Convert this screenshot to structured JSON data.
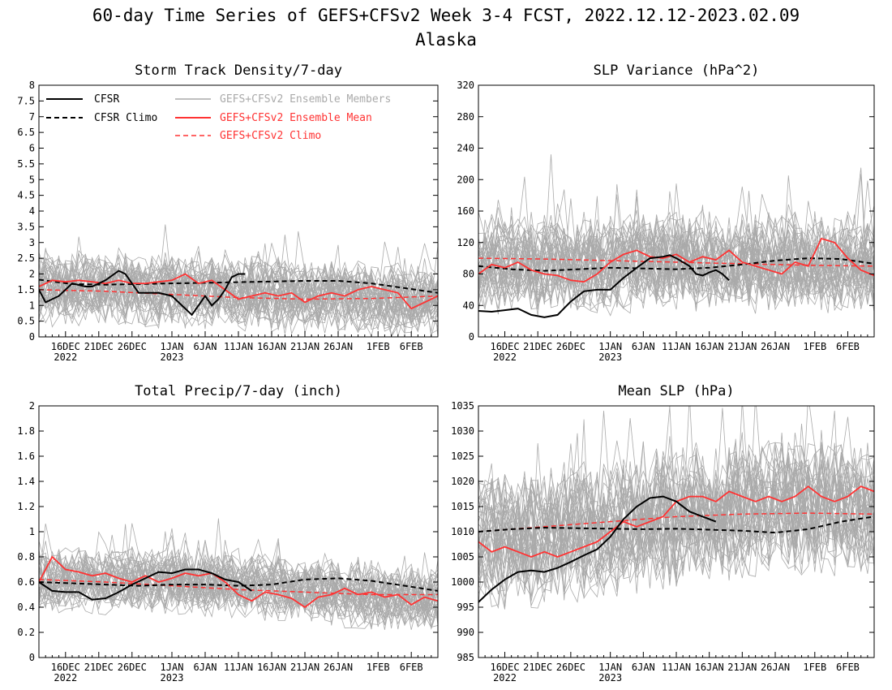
{
  "title": "60-day Time Series of GEFS+CFSv2 Week 3-4 FCST, 2022.12.12-2023.02.09",
  "subtitle": "Alaska",
  "colors": {
    "ensemble_member": "#aaaaaa",
    "ensemble_mean": "#ff3333",
    "cfsr": "#000000",
    "cfsr_climo": "#000000",
    "gefs_climo": "#ff3333"
  },
  "x_tick_labels": [
    "16DEC",
    "21DEC",
    "26DEC",
    "1JAN",
    "6JAN",
    "11JAN",
    "16JAN",
    "21JAN",
    "26JAN",
    "1FEB",
    "6FEB"
  ],
  "x_tick_sublabels": [
    "2022",
    "",
    "",
    "2023",
    "",
    "",
    "",
    "",
    "",
    "",
    ""
  ],
  "legend": [
    "CFSR",
    "CFSR Climo",
    "GEFS+CFSv2 Ensemble Members",
    "GEFS+CFSv2 Ensemble Mean",
    "GEFS+CFSv2 Climo"
  ],
  "chart_data": [
    {
      "type": "line",
      "title": "Storm Track Density/7-day",
      "ylim": [
        0,
        8
      ],
      "yticks": [
        "0",
        "0.5",
        "1",
        "1.5",
        "2",
        "2.5",
        "3",
        "3.5",
        "4",
        "4.5",
        "5",
        "5.5",
        "6",
        "6.5",
        "7",
        "7.5",
        "8"
      ],
      "legend_placement": "top",
      "ensemble_members": {
        "count": 40,
        "center": [
          1.55,
          1.5,
          1.45,
          1.3,
          1.2,
          1.1
        ],
        "spread_low": 0.2,
        "spread_high": 3.3
      },
      "series": [
        {
          "name": "CFSR",
          "x": [
            0,
            1,
            3,
            5,
            7,
            8,
            10,
            12,
            13,
            15,
            17,
            18,
            20,
            22,
            23,
            25,
            26,
            27,
            28,
            29,
            30,
            31,
            32,
            33,
            34,
            35,
            36,
            37,
            38,
            39,
            40,
            41,
            42,
            43,
            44,
            45,
            46,
            47,
            48,
            49,
            50,
            51,
            52,
            53,
            54,
            55,
            56,
            57,
            58,
            59,
            60
          ],
          "values": [
            1.5,
            1.1,
            1.3,
            1.7,
            1.6,
            1.6,
            1.8,
            2.1,
            2.0,
            1.4,
            1.4,
            1.4,
            1.3,
            0.9,
            0.7,
            1.3,
            1.0,
            1.2,
            1.5,
            1.9,
            2.0,
            2.0,
            null,
            null,
            null,
            null,
            null,
            null,
            null,
            null,
            null,
            null,
            null,
            null,
            null,
            null,
            null,
            null,
            null,
            null,
            null,
            null,
            null,
            null,
            null,
            null,
            null,
            null,
            null,
            null,
            null
          ]
        },
        {
          "name": "CFSR Climo",
          "x": [
            0,
            5,
            10,
            15,
            20,
            25,
            30,
            35,
            40,
            45,
            50,
            55,
            60
          ],
          "values": [
            1.82,
            1.68,
            1.66,
            1.68,
            1.7,
            1.72,
            1.74,
            1.76,
            1.78,
            1.78,
            1.7,
            1.55,
            1.4
          ]
        },
        {
          "name": "GEFS+CFSv2 Ensemble Mean",
          "x": [
            0,
            2,
            4,
            6,
            8,
            10,
            12,
            14,
            16,
            18,
            20,
            22,
            24,
            26,
            28,
            30,
            32,
            34,
            36,
            38,
            40,
            42,
            44,
            46,
            48,
            50,
            52,
            54,
            56,
            58,
            60
          ],
          "values": [
            1.6,
            1.8,
            1.75,
            1.8,
            1.75,
            1.7,
            1.8,
            1.7,
            1.7,
            1.75,
            1.8,
            2.0,
            1.7,
            1.8,
            1.5,
            1.2,
            1.3,
            1.4,
            1.3,
            1.4,
            1.1,
            1.3,
            1.4,
            1.3,
            1.5,
            1.6,
            1.5,
            1.4,
            0.9,
            1.1,
            1.3
          ]
        },
        {
          "name": "GEFS+CFSv2 Climo",
          "x": [
            0,
            10,
            20,
            30,
            40,
            50,
            60
          ],
          "values": [
            1.5,
            1.45,
            1.35,
            1.25,
            1.2,
            1.22,
            1.3
          ]
        }
      ]
    },
    {
      "type": "line",
      "title": "SLP Variance (hPa^2)",
      "ylim": [
        0,
        320
      ],
      "yticks": [
        "0",
        "40",
        "80",
        "120",
        "160",
        "200",
        "240",
        "280",
        "320"
      ],
      "ensemble_members": {
        "count": 40,
        "center": [
          90,
          92,
          95,
          95,
          92,
          90
        ],
        "spread_low": 30,
        "spread_high": 200
      },
      "series": [
        {
          "name": "CFSR",
          "x": [
            0,
            2,
            4,
            6,
            8,
            10,
            12,
            14,
            16,
            18,
            20,
            22,
            24,
            26,
            28,
            29,
            30,
            32,
            33,
            34,
            35,
            36,
            37,
            38,
            39,
            40,
            41
          ],
          "values": [
            33,
            32,
            34,
            36,
            28,
            25,
            28,
            45,
            58,
            60,
            60,
            75,
            88,
            100,
            102,
            104,
            100,
            90,
            80,
            78,
            82,
            85,
            80,
            72,
            null,
            null,
            null
          ]
        },
        {
          "name": "CFSR Climo",
          "x": [
            0,
            5,
            10,
            15,
            20,
            25,
            30,
            35,
            40,
            45,
            50,
            55,
            60
          ],
          "values": [
            90,
            86,
            84,
            86,
            88,
            87,
            86,
            88,
            92,
            97,
            100,
            99,
            93
          ]
        },
        {
          "name": "GEFS+CFSv2 Ensemble Mean",
          "x": [
            0,
            2,
            4,
            6,
            8,
            10,
            12,
            14,
            16,
            18,
            20,
            22,
            24,
            26,
            28,
            30,
            32,
            34,
            36,
            38,
            40,
            42,
            44,
            46,
            48,
            50,
            52,
            54,
            56,
            58,
            60
          ],
          "values": [
            80,
            92,
            88,
            95,
            85,
            80,
            78,
            72,
            70,
            80,
            95,
            105,
            110,
            102,
            100,
            105,
            95,
            102,
            98,
            110,
            95,
            90,
            85,
            80,
            95,
            90,
            125,
            120,
            100,
            85,
            78
          ]
        },
        {
          "name": "GEFS+CFSv2 Climo",
          "x": [
            0,
            10,
            20,
            30,
            40,
            50,
            60
          ],
          "values": [
            100,
            99,
            97,
            95,
            93,
            91,
            90
          ]
        }
      ]
    },
    {
      "type": "line",
      "title": "Total Precip/7-day (inch)",
      "ylim": [
        0,
        2
      ],
      "yticks": [
        "0",
        "0.2",
        "0.4",
        "0.6",
        "0.8",
        "1",
        "1.2",
        "1.4",
        "1.6",
        "1.8",
        "2"
      ],
      "ensemble_members": {
        "count": 40,
        "center": [
          0.6,
          0.62,
          0.6,
          0.55,
          0.5,
          0.45
        ],
        "spread_low": 0.25,
        "spread_high": 0.95
      },
      "series": [
        {
          "name": "CFSR",
          "x": [
            0,
            2,
            4,
            6,
            8,
            10,
            12,
            14,
            16,
            18,
            20,
            22,
            24,
            26,
            28,
            30,
            32
          ],
          "values": [
            0.6,
            0.53,
            0.52,
            0.52,
            0.46,
            0.47,
            0.52,
            0.58,
            0.63,
            0.68,
            0.67,
            0.7,
            0.7,
            0.67,
            0.62,
            0.6,
            0.53
          ]
        },
        {
          "name": "CFSR Climo",
          "x": [
            0,
            5,
            10,
            15,
            20,
            25,
            30,
            35,
            40,
            45,
            50,
            55,
            60
          ],
          "values": [
            0.6,
            0.59,
            0.58,
            0.57,
            0.58,
            0.58,
            0.57,
            0.58,
            0.62,
            0.63,
            0.61,
            0.57,
            0.53
          ]
        },
        {
          "name": "GEFS+CFSv2 Ensemble Mean",
          "x": [
            0,
            2,
            4,
            6,
            8,
            10,
            12,
            14,
            16,
            18,
            20,
            22,
            24,
            26,
            28,
            30,
            32,
            34,
            36,
            38,
            40,
            42,
            44,
            46,
            48,
            50,
            52,
            54,
            56,
            58,
            60
          ],
          "values": [
            0.6,
            0.8,
            0.7,
            0.68,
            0.65,
            0.67,
            0.63,
            0.6,
            0.65,
            0.6,
            0.63,
            0.67,
            0.65,
            0.67,
            0.6,
            0.5,
            0.45,
            0.52,
            0.5,
            0.47,
            0.4,
            0.48,
            0.5,
            0.55,
            0.5,
            0.52,
            0.48,
            0.5,
            0.42,
            0.48,
            0.45
          ]
        },
        {
          "name": "GEFS+CFSv2 Climo",
          "x": [
            0,
            10,
            20,
            30,
            40,
            50,
            60
          ],
          "values": [
            0.62,
            0.6,
            0.57,
            0.54,
            0.52,
            0.5,
            0.5
          ]
        }
      ]
    },
    {
      "type": "line",
      "title": "Mean SLP (hPa)",
      "ylim": [
        985,
        1035
      ],
      "yticks": [
        "985",
        "990",
        "995",
        "1000",
        "1005",
        "1010",
        "1015",
        "1020",
        "1025",
        "1030",
        "1035"
      ],
      "ensemble_members": {
        "count": 40,
        "center": [
          1008,
          1009,
          1012,
          1014,
          1015,
          1015
        ],
        "spread_low": 992,
        "spread_high": 1028
      },
      "series": [
        {
          "name": "CFSR",
          "x": [
            0,
            2,
            4,
            6,
            8,
            10,
            12,
            14,
            16,
            18,
            20,
            22,
            24,
            26,
            28,
            30,
            32,
            34,
            36
          ],
          "values": [
            996,
            998.5,
            1000.5,
            1002,
            1002.3,
            1002,
            1002.8,
            1004,
            1005.3,
            1006.5,
            1009,
            1012.5,
            1015,
            1016.7,
            1017,
            1016,
            1014,
            1013,
            1012
          ]
        },
        {
          "name": "CFSR Climo",
          "x": [
            0,
            5,
            10,
            15,
            20,
            25,
            30,
            35,
            40,
            45,
            50,
            55,
            60
          ],
          "values": [
            1010,
            1010.5,
            1010.8,
            1010.7,
            1010.6,
            1010.5,
            1010.6,
            1010.4,
            1010.2,
            1009.8,
            1010.5,
            1012,
            1013
          ]
        },
        {
          "name": "GEFS+CFSv2 Ensemble Mean",
          "x": [
            0,
            2,
            4,
            6,
            8,
            10,
            12,
            14,
            16,
            18,
            20,
            22,
            24,
            26,
            28,
            30,
            32,
            34,
            36,
            38,
            40,
            42,
            44,
            46,
            48,
            50,
            52,
            54,
            56,
            58,
            60
          ],
          "values": [
            1008,
            1006,
            1007,
            1006,
            1005,
            1006,
            1005,
            1006,
            1007,
            1008,
            1010,
            1012,
            1011,
            1012,
            1013,
            1016,
            1017,
            1017,
            1016,
            1018,
            1017,
            1016,
            1017,
            1016,
            1017,
            1019,
            1017,
            1016,
            1017,
            1019,
            1018
          ]
        },
        {
          "name": "GEFS+CFSv2 Climo",
          "x": [
            0,
            10,
            20,
            30,
            40,
            50,
            60
          ],
          "values": [
            1010,
            1011,
            1012,
            1013,
            1013.5,
            1013.7,
            1013.5
          ]
        }
      ]
    }
  ]
}
